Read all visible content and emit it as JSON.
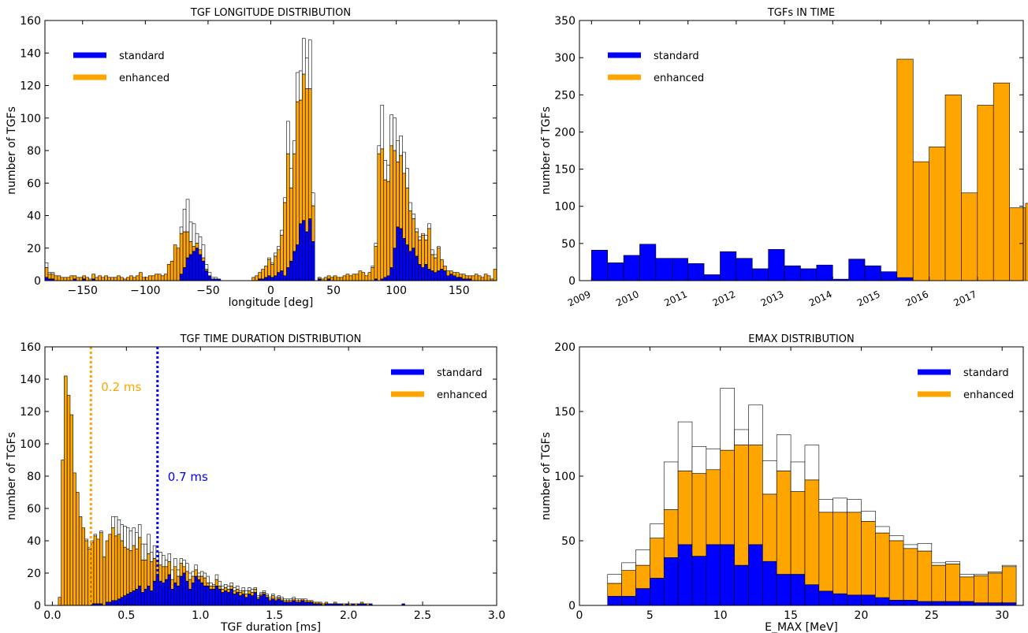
{
  "colors": {
    "standard": "#0000ff",
    "enhanced": "#ffa500",
    "outline": "#000000",
    "other_outline": "#999999"
  },
  "chart_data": [
    {
      "id": "longitude",
      "type": "bar",
      "title": "TGF LONGITUDE DISTRIBUTION",
      "xlabel": "longitude [deg]",
      "ylabel": "number of TGFs",
      "xlim": [
        -180,
        180
      ],
      "ylim": [
        0,
        160
      ],
      "xticks": [
        -150,
        -100,
        -50,
        0,
        50,
        100,
        150
      ],
      "yticks": [
        0,
        20,
        40,
        60,
        80,
        100,
        120,
        140,
        160
      ],
      "legend": {
        "position": "top-left",
        "entries": [
          "standard",
          "enhanced"
        ]
      },
      "bin_width": 2.5,
      "x_start": -180,
      "series": [
        {
          "name": "standard",
          "values": [
            2,
            1,
            1,
            0,
            0,
            0,
            0,
            0,
            0,
            1,
            0,
            0,
            1,
            0,
            0,
            1,
            0,
            0,
            0,
            0,
            0,
            0,
            0,
            0,
            0,
            0,
            0,
            0,
            0,
            0,
            0,
            0,
            0,
            0,
            0,
            0,
            0,
            0,
            0,
            0,
            0,
            0,
            0,
            4,
            8,
            14,
            16,
            18,
            20,
            16,
            12,
            6,
            3,
            1,
            1,
            1,
            0,
            0,
            0,
            0,
            0,
            0,
            0,
            0,
            0,
            0,
            0,
            0,
            1,
            1,
            2,
            3,
            2,
            3,
            5,
            6,
            3,
            8,
            12,
            18,
            22,
            35,
            37,
            30,
            38,
            24,
            0,
            1,
            0,
            0,
            1,
            0,
            0,
            0,
            0,
            0,
            0,
            0,
            0,
            0,
            0,
            0,
            0,
            0,
            0,
            1,
            0,
            1,
            2,
            3,
            8,
            20,
            33,
            32,
            26,
            22,
            18,
            20,
            15,
            10,
            8,
            10,
            7,
            6,
            5,
            6,
            7,
            6,
            3,
            4,
            3,
            2,
            2,
            1,
            1,
            1,
            0,
            0,
            0,
            0,
            0,
            0,
            0,
            0
          ]
        },
        {
          "name": "enhanced",
          "values": [
            6,
            3,
            3,
            3,
            3,
            2,
            2,
            2,
            3,
            2,
            2,
            2,
            2,
            2,
            1,
            3,
            2,
            3,
            2,
            3,
            2,
            2,
            2,
            3,
            2,
            1,
            2,
            3,
            2,
            3,
            5,
            2,
            2,
            3,
            3,
            4,
            4,
            3,
            4,
            10,
            12,
            22,
            20,
            25,
            22,
            16,
            8,
            3,
            3,
            3,
            2,
            1,
            0,
            0,
            0,
            0,
            0,
            0,
            0,
            0,
            0,
            0,
            0,
            0,
            0,
            0,
            2,
            3,
            4,
            6,
            7,
            10,
            8,
            12,
            14,
            22,
            45,
            70,
            45,
            60,
            88,
            76,
            90,
            88,
            80,
            22,
            0,
            1,
            1,
            2,
            2,
            2,
            3,
            2,
            2,
            3,
            4,
            3,
            4,
            4,
            6,
            5,
            3,
            5,
            8,
            20,
            78,
            80,
            60,
            58,
            75,
            60,
            40,
            45,
            40,
            35,
            25,
            18,
            15,
            15,
            20,
            15,
            25,
            10,
            9,
            14,
            6,
            3,
            3,
            2,
            2,
            3,
            2,
            3,
            2,
            2,
            3,
            4,
            3,
            2,
            4,
            3,
            1,
            7
          ]
        },
        {
          "name": "other",
          "values": [
            3,
            1,
            1,
            0,
            0,
            0,
            0,
            0,
            0,
            0,
            0,
            0,
            0,
            0,
            0,
            0,
            0,
            0,
            0,
            0,
            0,
            0,
            0,
            0,
            0,
            0,
            0,
            0,
            0,
            0,
            0,
            0,
            0,
            0,
            0,
            0,
            0,
            0,
            0,
            0,
            0,
            0,
            0,
            4,
            14,
            20,
            12,
            14,
            6,
            8,
            8,
            3,
            2,
            1,
            1,
            0,
            0,
            0,
            0,
            0,
            0,
            0,
            0,
            0,
            0,
            0,
            0,
            0,
            0,
            0,
            0,
            1,
            1,
            2,
            2,
            3,
            3,
            20,
            12,
            8,
            18,
            18,
            22,
            19,
            30,
            8,
            0,
            0,
            0,
            0,
            0,
            0,
            0,
            0,
            0,
            0,
            0,
            0,
            0,
            0,
            0,
            0,
            0,
            0,
            1,
            2,
            5,
            27,
            12,
            10,
            19,
            20,
            13,
            12,
            13,
            12,
            5,
            3,
            2,
            2,
            1,
            3,
            3,
            3,
            2,
            1,
            0,
            0,
            0,
            0,
            0,
            0,
            0,
            0,
            0,
            0,
            0,
            0,
            0,
            0,
            0,
            0,
            0,
            0
          ]
        }
      ]
    },
    {
      "id": "time",
      "type": "bar",
      "title": "TGFs IN TIME",
      "xlabel": "",
      "ylabel": "number of TGFs",
      "xlim": [
        2008.75,
        2017.95
      ],
      "ylim": [
        0,
        350
      ],
      "xticks": [
        "2009",
        "2010",
        "2011",
        "2012",
        "2013",
        "2014",
        "2015",
        "2016",
        "2017"
      ],
      "yticks": [
        0,
        50,
        100,
        150,
        200,
        250,
        300,
        350
      ],
      "legend": {
        "position": "top-left",
        "entries": [
          "standard",
          "enhanced"
        ]
      },
      "bin_width": 0.3333,
      "x_start": 2009.0,
      "series": [
        {
          "name": "standard",
          "values": [
            41,
            24,
            34,
            49,
            30,
            30,
            23,
            8,
            39,
            30,
            16,
            42,
            20,
            16,
            21,
            2,
            29,
            20,
            12,
            4,
            0,
            0,
            0,
            0,
            0,
            0,
            0,
            0
          ]
        },
        {
          "name": "enhanced",
          "values": [
            0,
            0,
            0,
            0,
            0,
            0,
            0,
            0,
            0,
            0,
            0,
            0,
            0,
            0,
            0,
            0,
            0,
            0,
            0,
            294,
            160,
            180,
            250,
            118,
            236,
            266,
            98,
            104
          ]
        }
      ]
    },
    {
      "id": "duration",
      "type": "bar",
      "title": "TGF TIME DURATION DISTRIBUTION",
      "xlabel": "TGF duration [ms]",
      "ylabel": "number of TGFs",
      "xlim": [
        -0.05,
        3.0
      ],
      "ylim": [
        0,
        160
      ],
      "xticks": [
        0.0,
        0.5,
        1.0,
        1.5,
        2.0,
        2.5,
        3.0
      ],
      "yticks": [
        0,
        20,
        40,
        60,
        80,
        100,
        120,
        140,
        160
      ],
      "legend": {
        "position": "top-right",
        "entries": [
          "standard",
          "enhanced"
        ]
      },
      "bin_width": 0.02,
      "x_start": 0.04,
      "annotations": [
        {
          "text": "0.2 ms",
          "x": 0.26,
          "color": "enhanced"
        },
        {
          "text": "0.7 ms",
          "x": 0.71,
          "color": "standard"
        }
      ],
      "series": [
        {
          "name": "standard",
          "values": [
            0,
            0,
            0,
            0,
            0,
            0,
            0,
            0,
            0,
            0,
            0,
            1,
            1,
            1,
            1,
            0,
            2,
            2,
            3,
            3,
            4,
            5,
            6,
            7,
            8,
            9,
            10,
            12,
            8,
            10,
            12,
            9,
            15,
            18,
            15,
            14,
            16,
            19,
            10,
            14,
            12,
            18,
            20,
            15,
            10,
            14,
            18,
            16,
            14,
            12,
            12,
            10,
            10,
            12,
            10,
            8,
            9,
            8,
            10,
            7,
            8,
            6,
            7,
            5,
            7,
            6,
            8,
            4,
            6,
            7,
            5,
            3,
            4,
            3,
            4,
            3,
            2,
            2,
            2,
            3,
            2,
            2,
            3,
            2,
            2,
            2,
            1,
            1,
            1,
            0,
            1,
            1,
            1,
            1,
            1,
            1,
            0,
            1,
            0,
            1,
            0,
            1,
            1,
            1,
            0,
            1,
            0,
            0,
            0,
            0,
            0,
            0,
            0,
            0,
            0,
            0,
            1,
            0,
            0,
            0,
            0,
            0,
            0,
            0,
            0,
            0
          ]
        },
        {
          "name": "enhanced",
          "values": [
            5,
            90,
            142,
            130,
            118,
            82,
            70,
            55,
            48,
            40,
            35,
            38,
            42,
            40,
            44,
            30,
            38,
            42,
            45,
            40,
            40,
            35,
            30,
            28,
            26,
            28,
            25,
            30,
            20,
            18,
            20,
            18,
            14,
            10,
            10,
            10,
            8,
            8,
            6,
            10,
            6,
            8,
            4,
            6,
            6,
            4,
            4,
            2,
            4,
            5,
            2,
            2,
            2,
            4,
            2,
            2,
            2,
            2,
            2,
            2,
            2,
            2,
            2,
            2,
            2,
            2,
            2,
            1,
            1,
            1,
            1,
            1,
            2,
            1,
            1,
            1,
            1,
            1,
            1,
            1,
            1,
            1,
            1,
            1,
            1,
            1,
            1,
            1,
            1,
            1,
            1,
            0,
            0,
            1,
            0,
            0,
            1,
            0,
            1,
            0,
            1,
            0,
            1,
            0,
            1,
            0,
            0,
            0,
            0,
            0,
            0,
            0,
            0,
            0,
            0,
            0,
            0,
            0,
            0,
            0,
            0,
            0,
            0,
            0,
            0,
            0
          ]
        },
        {
          "name": "other",
          "values": [
            0,
            0,
            0,
            0,
            0,
            0,
            0,
            0,
            0,
            1,
            1,
            1,
            1,
            0,
            1,
            0,
            0,
            0,
            7,
            12,
            9,
            10,
            13,
            13,
            12,
            11,
            10,
            8,
            10,
            10,
            12,
            6,
            8,
            5,
            8,
            7,
            4,
            5,
            6,
            5,
            4,
            3,
            4,
            5,
            4,
            3,
            3,
            2,
            3,
            3,
            4,
            2,
            1,
            3,
            3,
            2,
            2,
            2,
            2,
            2,
            2,
            1,
            2,
            2,
            2,
            2,
            1,
            1,
            1,
            1,
            1,
            1,
            1,
            1,
            1,
            1,
            1,
            1,
            1,
            1,
            1,
            1,
            0,
            1,
            0,
            0,
            0,
            0,
            0,
            0,
            0,
            0,
            0,
            0,
            0,
            0,
            0,
            0,
            0,
            0,
            0,
            0,
            0,
            0,
            0,
            0,
            0,
            0,
            0,
            0,
            0,
            0,
            0,
            0,
            0,
            0,
            0,
            0,
            0,
            0,
            0,
            0,
            0,
            0,
            0,
            0
          ]
        }
      ]
    },
    {
      "id": "emax",
      "type": "bar",
      "title": "EMAX DISTRIBUTION",
      "xlabel": "E_MAX [MeV]",
      "ylabel": "number of TGFs",
      "xlim": [
        0,
        31.5
      ],
      "ylim": [
        0,
        200
      ],
      "xticks": [
        0,
        5,
        10,
        15,
        20,
        25,
        30
      ],
      "yticks": [
        0,
        50,
        100,
        150,
        200
      ],
      "legend": {
        "position": "top-right",
        "entries": [
          "standard",
          "enhanced"
        ]
      },
      "bin_width": 1,
      "x_start": 2,
      "series": [
        {
          "name": "standard",
          "values": [
            7,
            7,
            13,
            21,
            37,
            47,
            38,
            47,
            47,
            31,
            47,
            34,
            24,
            24,
            16,
            11,
            9,
            8,
            8,
            6,
            4,
            4,
            3,
            3,
            3,
            3,
            2,
            2,
            2
          ]
        },
        {
          "name": "enhanced",
          "values": [
            10,
            20,
            18,
            31,
            37,
            57,
            64,
            58,
            73,
            93,
            77,
            52,
            80,
            64,
            81,
            61,
            63,
            64,
            57,
            50,
            46,
            40,
            39,
            28,
            29,
            19,
            21,
            23,
            28
          ]
        },
        {
          "name": "other",
          "values": [
            7,
            6,
            12,
            11,
            37,
            38,
            21,
            16,
            48,
            12,
            31,
            26,
            28,
            23,
            27,
            10,
            11,
            10,
            8,
            5,
            4,
            3,
            6,
            2,
            2,
            2,
            1,
            1,
            1
          ]
        }
      ]
    }
  ]
}
